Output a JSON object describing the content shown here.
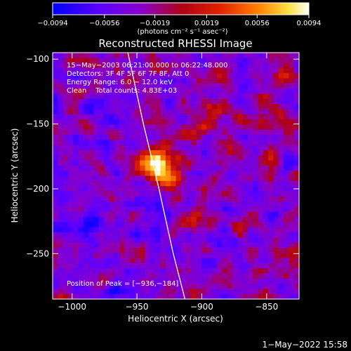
{
  "chart_data": {
    "type": "heatmap",
    "title": "Reconstructed RHESSI Image",
    "xlabel": "Heliocentric X (arcsec)",
    "ylabel": "Heliocentric Y (arcsec)",
    "xlim": [
      -1015,
      -825
    ],
    "ylim": [
      -285,
      -95
    ],
    "x_ticks": [
      -1000,
      -950,
      -900,
      -850
    ],
    "x_tick_labels": [
      "−1000",
      "−950",
      "−900",
      "−850"
    ],
    "y_ticks": [
      -100,
      -150,
      -200,
      -250
    ],
    "y_tick_labels": [
      "−100",
      "−150",
      "−200",
      "−250"
    ],
    "colorbar": {
      "min": -0.0094,
      "max": 0.0094,
      "ticks": [
        -0.0094,
        -0.0056,
        -0.0019,
        0.0019,
        0.0056,
        0.0094
      ],
      "tick_labels": [
        "−0.0094",
        "−0.0056",
        "−0.0019",
        "0.0019",
        "0.0056",
        "0.0094"
      ],
      "unit_label": "(photons cm⁻² s⁻¹ asec⁻²)"
    },
    "info_lines": [
      "15−May−2003 06:21:00.000 to 06:22:48.000",
      "Detectors: 3F 4F 5F 6F 7F 8F, Att 0",
      "Energy Range: 6.0 − 12.0 keV",
      "Clean    Total counts: 4.83E+03"
    ],
    "peak": {
      "x": -936,
      "y": -184,
      "label": "Position of Peak = [−936,−184]"
    },
    "limb_curve": [
      [
        -957,
        -95
      ],
      [
        -945,
        -150
      ],
      [
        -933,
        -200
      ],
      [
        -922,
        -250
      ],
      [
        -913,
        -285
      ]
    ],
    "colors": {
      "background": "#000000",
      "limb": "#ffffff",
      "peak": "#fffff0"
    },
    "timestamp": "1−May−2022 15:58"
  }
}
